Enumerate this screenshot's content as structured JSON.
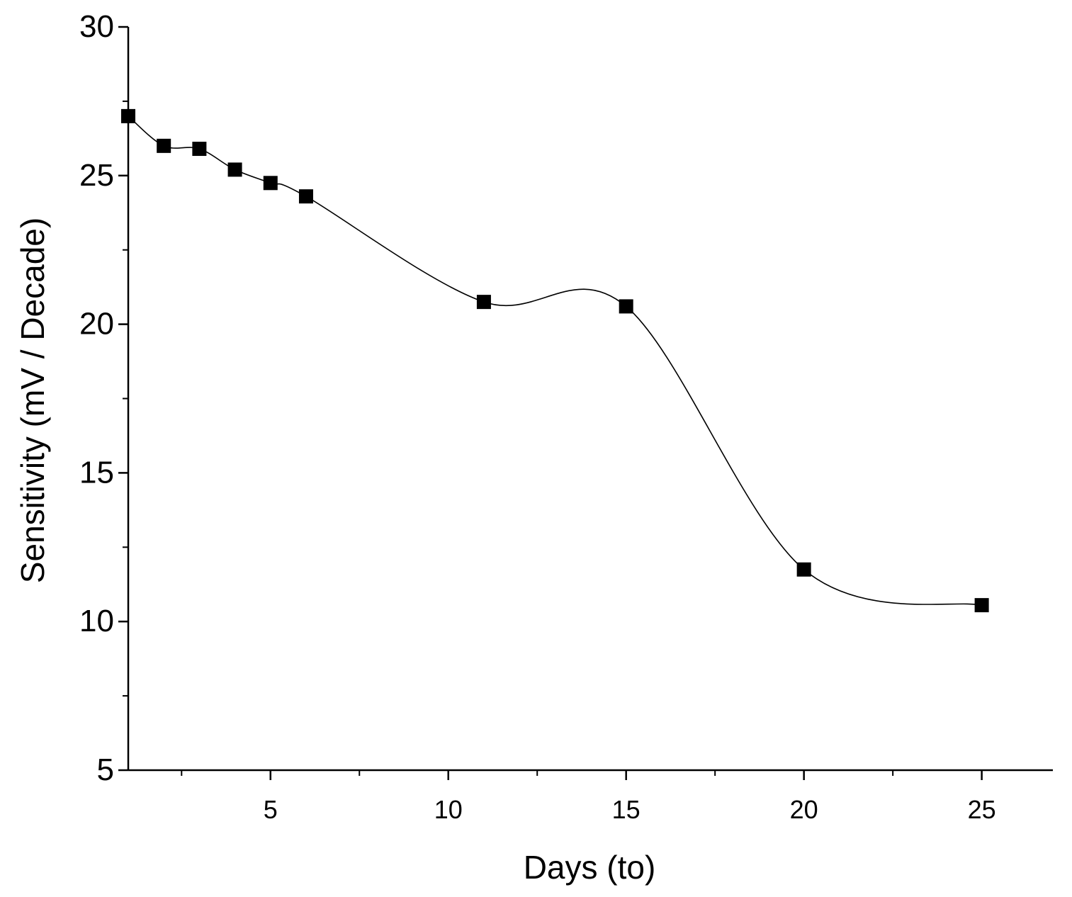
{
  "chart_data": {
    "type": "line",
    "title": "",
    "xlabel": "Days (to)",
    "ylabel": "Sensitivity (mV / Decade)",
    "xlim": [
      1,
      27
    ],
    "ylim": [
      5,
      30
    ],
    "x_ticks": [
      5,
      10,
      15,
      20,
      25
    ],
    "y_ticks": [
      5,
      10,
      15,
      20,
      25,
      30
    ],
    "grid": false,
    "marker": "square",
    "smooth": true,
    "colors": {
      "line": "#000000",
      "marker": "#000000",
      "axis": "#000000"
    },
    "series": [
      {
        "name": "Sensitivity",
        "x": [
          1,
          2,
          3,
          4,
          5,
          6,
          11,
          15,
          20,
          25
        ],
        "y": [
          27.0,
          26.0,
          25.9,
          25.2,
          24.75,
          24.3,
          20.75,
          20.6,
          11.75,
          10.55
        ]
      }
    ]
  }
}
